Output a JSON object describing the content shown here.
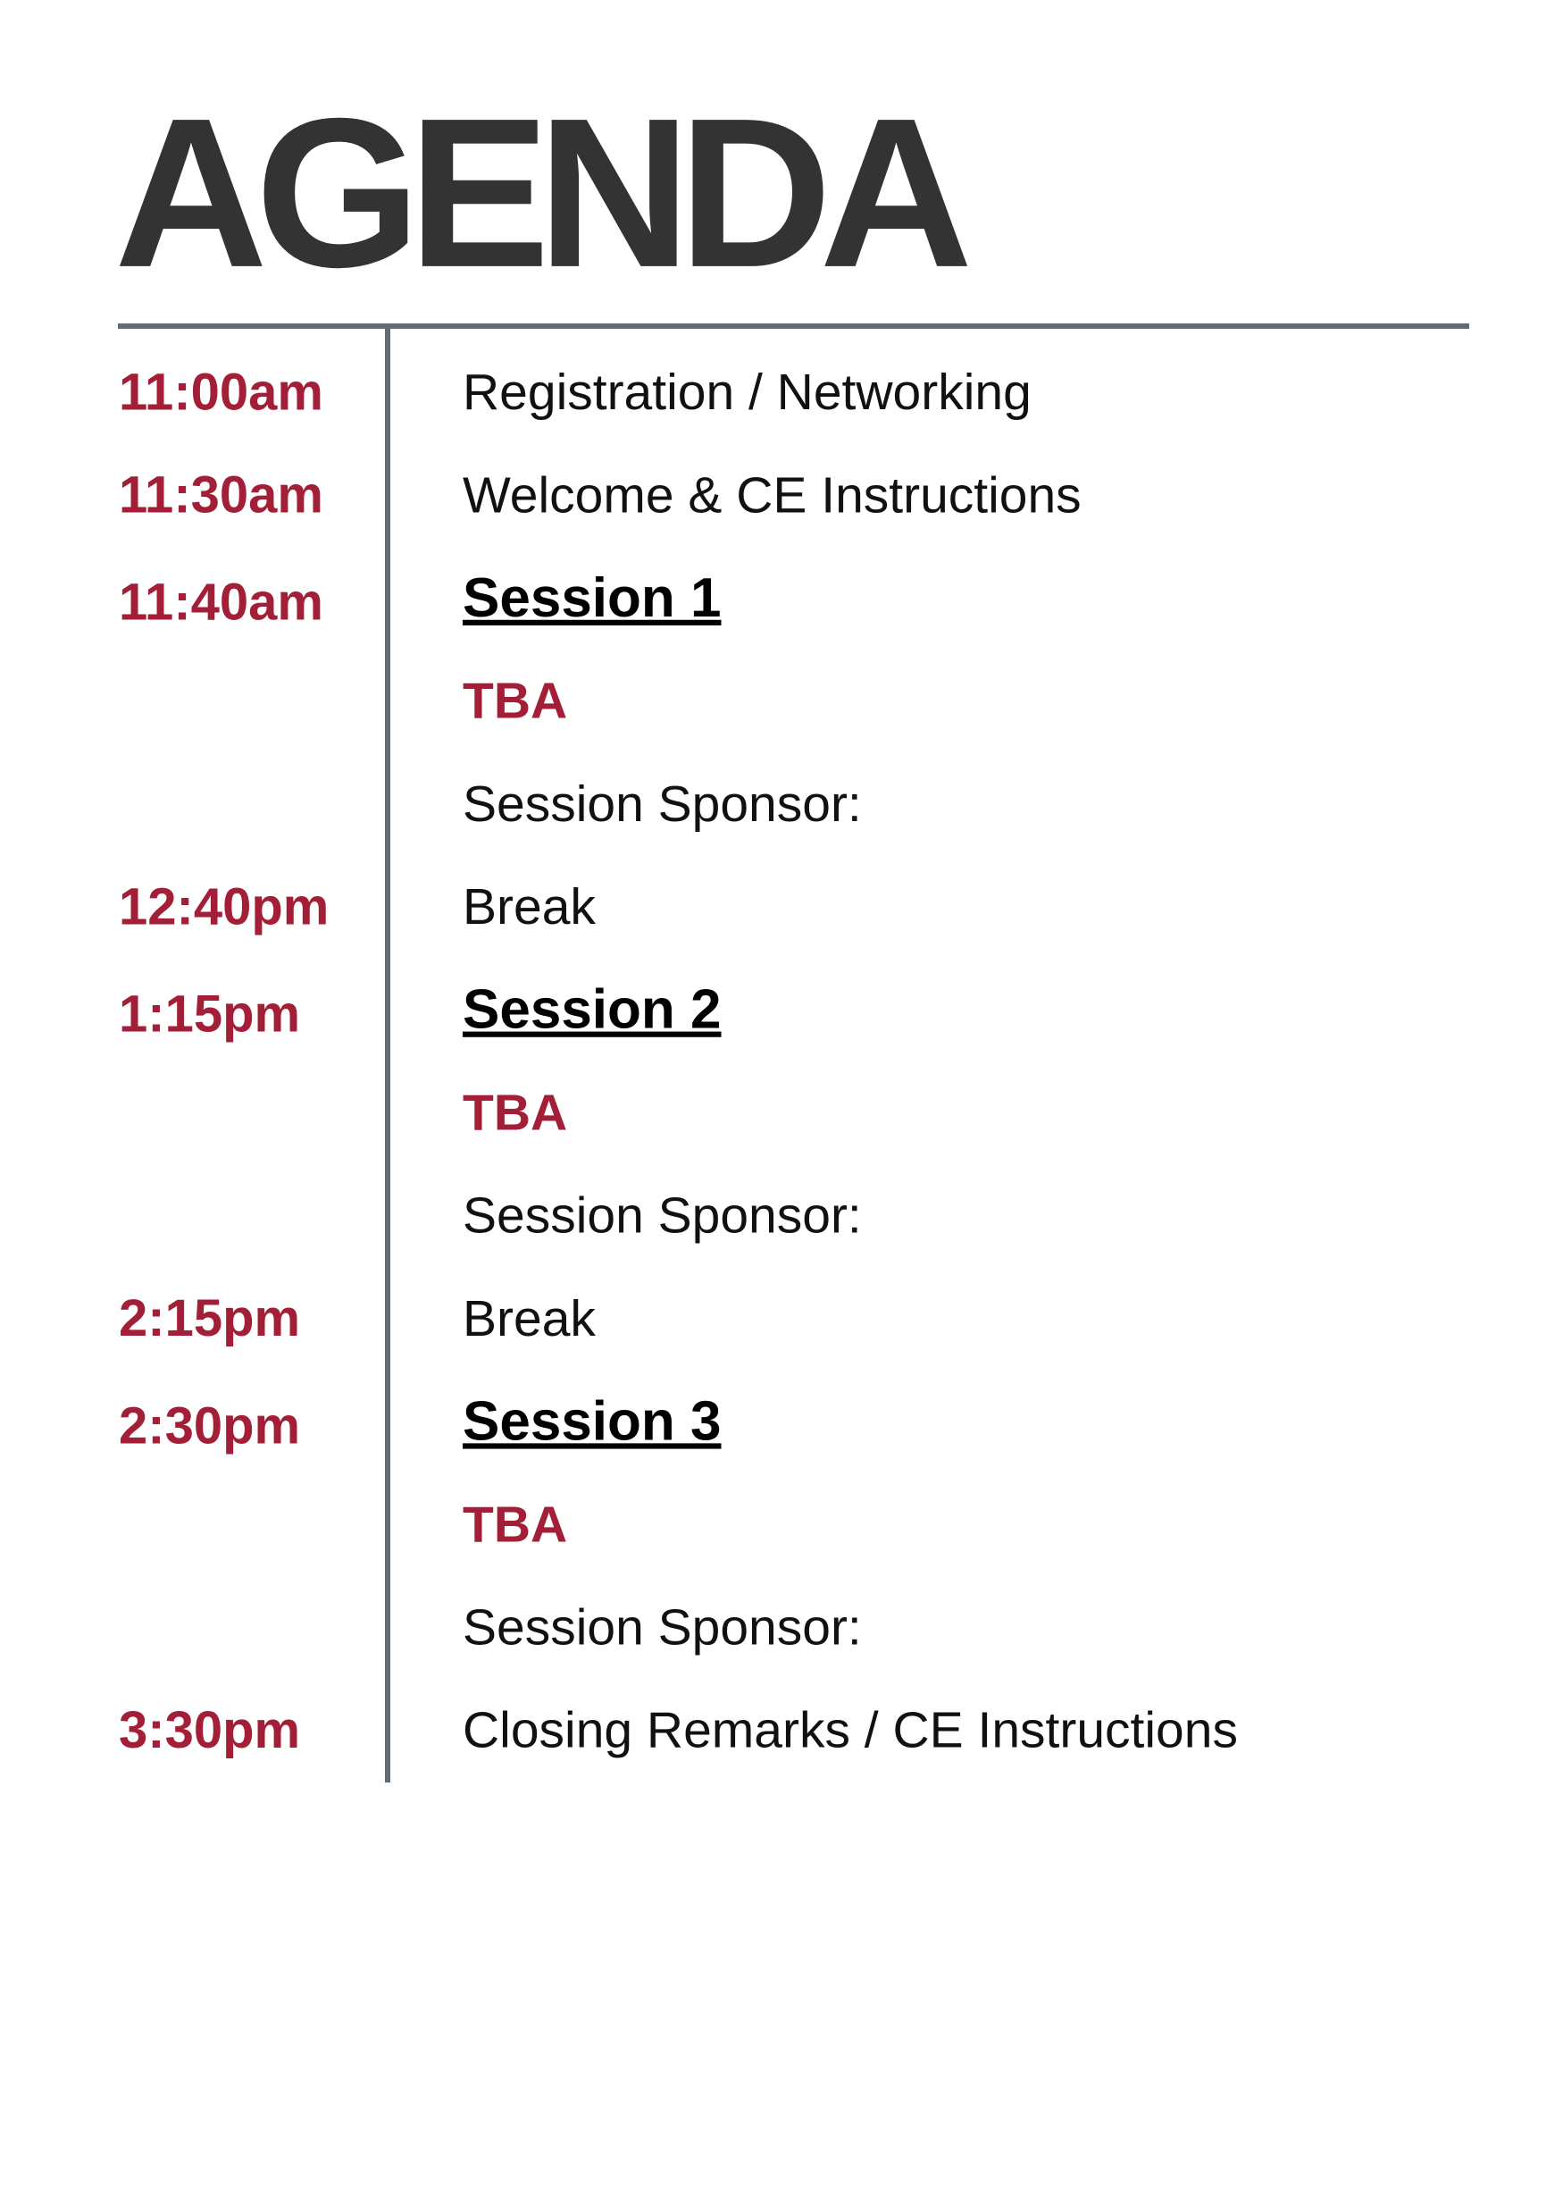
{
  "header": {
    "title": "AGENDA"
  },
  "agenda": [
    {
      "time": "11:00am",
      "activity": "Registration / Networking"
    },
    {
      "time": "11:30am",
      "activity": "Welcome & CE Instructions"
    },
    {
      "time": "11:40am",
      "session": {
        "title": "Session 1",
        "speaker": "TBA",
        "sponsor": "Session Sponsor:"
      }
    },
    {
      "time": "12:40pm",
      "activity": "Break"
    },
    {
      "time": "1:15pm",
      "session": {
        "title": "Session 2",
        "speaker": "TBA",
        "sponsor": "Session Sponsor:"
      }
    },
    {
      "time": "2:15pm",
      "activity": "Break"
    },
    {
      "time": "2:30pm",
      "session": {
        "title": "Session 3",
        "speaker": "TBA",
        "sponsor": "Session Sponsor:"
      }
    },
    {
      "time": "3:30pm",
      "activity": "Closing Remarks / CE Instructions"
    }
  ]
}
